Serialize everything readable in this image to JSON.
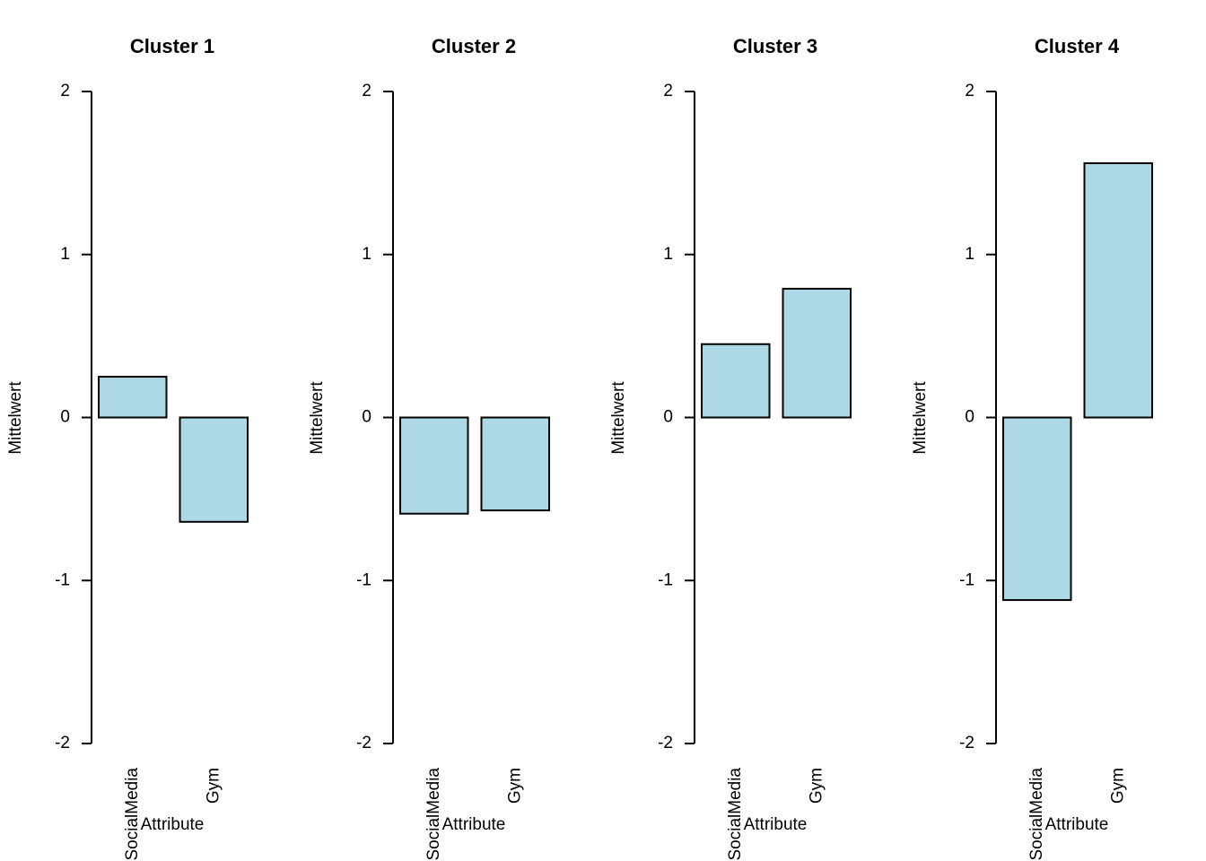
{
  "chart_data": [
    {
      "type": "bar",
      "title": "Cluster 1",
      "xlabel": "Attribute",
      "ylabel": "Mittelwert",
      "categories": [
        "SocialMedia",
        "Gym"
      ],
      "values": [
        0.25,
        -0.64
      ],
      "color": "#add8e6",
      "ylim": [
        -2,
        2
      ],
      "yticks": [
        -2,
        -1,
        0,
        1,
        2
      ]
    },
    {
      "type": "bar",
      "title": "Cluster 2",
      "xlabel": "Attribute",
      "ylabel": "Mittelwert",
      "categories": [
        "SocialMedia",
        "Gym"
      ],
      "values": [
        -0.59,
        -0.57
      ],
      "color": "#add8e6",
      "ylim": [
        -2,
        2
      ],
      "yticks": [
        -2,
        -1,
        0,
        1,
        2
      ]
    },
    {
      "type": "bar",
      "title": "Cluster 3",
      "xlabel": "Attribute",
      "ylabel": "Mittelwert",
      "categories": [
        "SocialMedia",
        "Gym"
      ],
      "values": [
        0.45,
        0.79
      ],
      "color": "#add8e6",
      "ylim": [
        -2,
        2
      ],
      "yticks": [
        -2,
        -1,
        0,
        1,
        2
      ]
    },
    {
      "type": "bar",
      "title": "Cluster 4",
      "xlabel": "Attribute",
      "ylabel": "Mittelwert",
      "categories": [
        "SocialMedia",
        "Gym"
      ],
      "values": [
        -1.12,
        1.56
      ],
      "color": "#add8e6",
      "ylim": [
        -2,
        2
      ],
      "yticks": [
        -2,
        -1,
        0,
        1,
        2
      ]
    }
  ]
}
